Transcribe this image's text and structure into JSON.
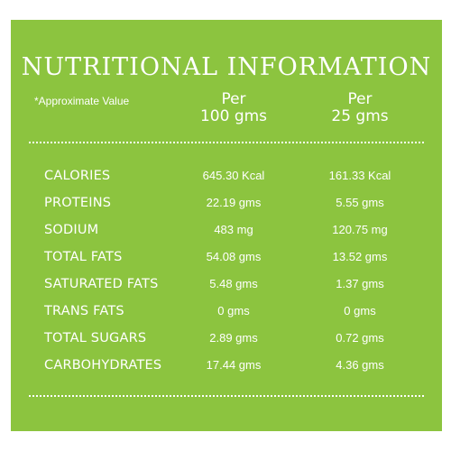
{
  "title": "NUTRITIONAL INFORMATION",
  "note": "*Approximate Value",
  "columns": [
    {
      "line1": "Per",
      "line2": "100 gms"
    },
    {
      "line1": "Per",
      "line2": "25 gms"
    }
  ],
  "rows": [
    {
      "name": "CALORIES",
      "per100": "645.30 Kcal",
      "per25": "161.33 Kcal"
    },
    {
      "name": "PROTEINS",
      "per100": "22.19 gms",
      "per25": "5.55 gms"
    },
    {
      "name": "SODIUM",
      "per100": "483 mg",
      "per25": "120.75 mg"
    },
    {
      "name": "TOTAL FATS",
      "per100": "54.08 gms",
      "per25": "13.52 gms"
    },
    {
      "name": "SATURATED FATS",
      "per100": "5.48 gms",
      "per25": "1.37 gms"
    },
    {
      "name": "TRANS FATS",
      "per100": "0 gms",
      "per25": "0 gms"
    },
    {
      "name": "TOTAL SUGARS",
      "per100": "2.89 gms",
      "per25": "0.72 gms"
    },
    {
      "name": "CARBOHYDRATES",
      "per100": "17.44 gms",
      "per25": "4.36 gms"
    }
  ],
  "colors": {
    "panel": "#8cc43f",
    "text": "#ffffff",
    "background": "#ffffff"
  }
}
